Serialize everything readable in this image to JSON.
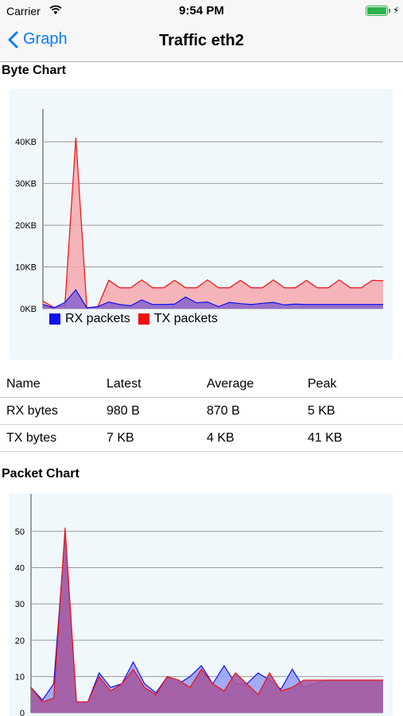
{
  "status_bar": {
    "carrier": "Carrier",
    "time": "9:54 PM"
  },
  "nav": {
    "back_label": "Graph",
    "title": "Traffic eth2"
  },
  "byte_section": {
    "title": "Byte Chart"
  },
  "packet_section": {
    "title": "Packet Chart"
  },
  "stats": {
    "headers": [
      "Name",
      "Latest",
      "Average",
      "Peak"
    ],
    "rows": [
      [
        "RX bytes",
        "980 B",
        "870 B",
        "5 KB"
      ],
      [
        "TX bytes",
        "7 KB",
        "4 KB",
        "41 KB"
      ]
    ]
  },
  "colors": {
    "rx": "#1010ee",
    "tx": "#ee1010",
    "accent": "#0a7aff"
  },
  "chart_data": [
    {
      "type": "area",
      "ylim": [
        0,
        45
      ],
      "y_ticks": [
        0,
        10,
        20,
        30,
        40
      ],
      "y_tick_labels": [
        "0KB",
        "10KB",
        "20KB",
        "30KB",
        "40KB"
      ],
      "x": [
        0,
        1,
        2,
        3,
        4,
        5,
        6,
        7,
        8,
        9,
        10,
        11,
        12,
        13,
        14,
        15,
        16,
        17,
        18,
        19,
        20,
        21,
        22,
        23,
        24,
        25,
        26,
        27,
        28,
        29,
        30,
        31
      ],
      "legend": [
        "RX packets",
        "TX packets"
      ],
      "series": [
        {
          "name": "RX packets",
          "values": [
            1.0,
            0.2,
            1.5,
            4.5,
            0.2,
            0.5,
            1.6,
            1.0,
            0.7,
            2.1,
            1.0,
            1.0,
            1.1,
            2.8,
            1.4,
            1.6,
            0.5,
            1.5,
            1.2,
            1.0,
            1.3,
            1.5,
            0.9,
            1.1,
            1.0,
            1.0,
            1.0,
            1.0,
            1.0,
            1.0,
            1.0,
            1.0
          ]
        },
        {
          "name": "TX packets",
          "values": [
            1.8,
            0.3,
            0.8,
            41.0,
            0.2,
            0.5,
            6.8,
            5.0,
            5.0,
            6.9,
            5.0,
            5.0,
            6.8,
            5.0,
            5.0,
            6.9,
            5.0,
            5.0,
            6.8,
            5.0,
            5.0,
            6.9,
            5.0,
            5.0,
            6.8,
            5.0,
            5.0,
            6.9,
            5.0,
            5.0,
            6.8,
            6.7
          ]
        }
      ]
    },
    {
      "type": "area",
      "ylim": [
        0,
        57
      ],
      "y_ticks": [
        0,
        10,
        20,
        30,
        40,
        50
      ],
      "y_tick_labels": [
        "0",
        "10",
        "20",
        "30",
        "40",
        "50"
      ],
      "x": [
        0,
        1,
        2,
        3,
        4,
        5,
        6,
        7,
        8,
        9,
        10,
        11,
        12,
        13,
        14,
        15,
        16,
        17,
        18,
        19,
        20,
        21,
        22,
        23,
        24,
        25,
        26,
        27,
        28,
        29,
        30,
        31
      ],
      "series": [
        {
          "name": "RX packets",
          "values": [
            7,
            3.5,
            8,
            49,
            3,
            3,
            11,
            7,
            8,
            14,
            8,
            5.5,
            10,
            8,
            10,
            13,
            8,
            13,
            8,
            8,
            11,
            9,
            6.5,
            12,
            7,
            8,
            9,
            9,
            9,
            9,
            9,
            9
          ]
        },
        {
          "name": "TX packets",
          "values": [
            7,
            3,
            4,
            51,
            3,
            3,
            10,
            6,
            8,
            12,
            7,
            5,
            10,
            9,
            7,
            12,
            8,
            6,
            11,
            8,
            5,
            11,
            6,
            7,
            9,
            9,
            9,
            9,
            9,
            9,
            9,
            9
          ]
        }
      ]
    }
  ]
}
